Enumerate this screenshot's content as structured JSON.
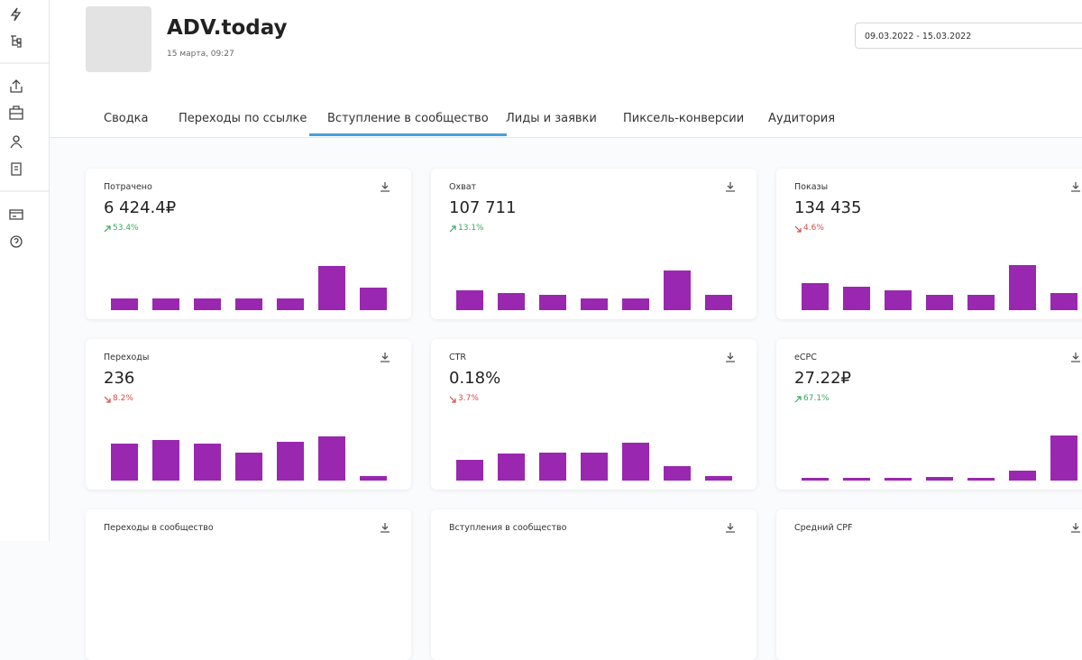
{
  "header": {
    "title": "ADV.today",
    "subtitle": "15 марта, 09:27",
    "date_range": "09.03.2022 - 15.03.2022"
  },
  "tabs": [
    "Сводка",
    "Переходы по ссылке",
    "Вступление в сообщество",
    "Лиды и заявки",
    "Пиксель-конверсии",
    "Аудитория"
  ],
  "active_tab": 2,
  "cards": [
    {
      "title": "Потрачено",
      "value": "6 424.4₽",
      "change": "53.4%",
      "trend": "up",
      "bars": [
        13,
        13,
        13,
        13,
        13,
        49,
        25
      ]
    },
    {
      "title": "Охват",
      "value": "107 711",
      "change": "13.1%",
      "trend": "up",
      "bars": [
        22,
        19,
        17,
        13,
        13,
        44,
        17
      ]
    },
    {
      "title": "Показы",
      "value": "134 435",
      "change": "4.6%",
      "trend": "down",
      "bars": [
        30,
        26,
        22,
        17,
        17,
        50,
        19
      ]
    },
    {
      "title": "Переходы",
      "value": "236",
      "change": "8.2%",
      "trend": "down",
      "bars": [
        41,
        45,
        41,
        31,
        43,
        49,
        5
      ]
    },
    {
      "title": "CTR",
      "value": "0.18%",
      "change": "3.7%",
      "trend": "down",
      "bars": [
        23,
        30,
        31,
        31,
        42,
        16,
        5
      ]
    },
    {
      "title": "eCPC",
      "value": "27.22₽",
      "change": "67.1%",
      "trend": "up",
      "bars": [
        3,
        3,
        3,
        4,
        3,
        11,
        50
      ]
    },
    {
      "title": "Переходы в сообщество"
    },
    {
      "title": "Вступления в сообщество"
    },
    {
      "title": "Средний CPF"
    }
  ]
}
